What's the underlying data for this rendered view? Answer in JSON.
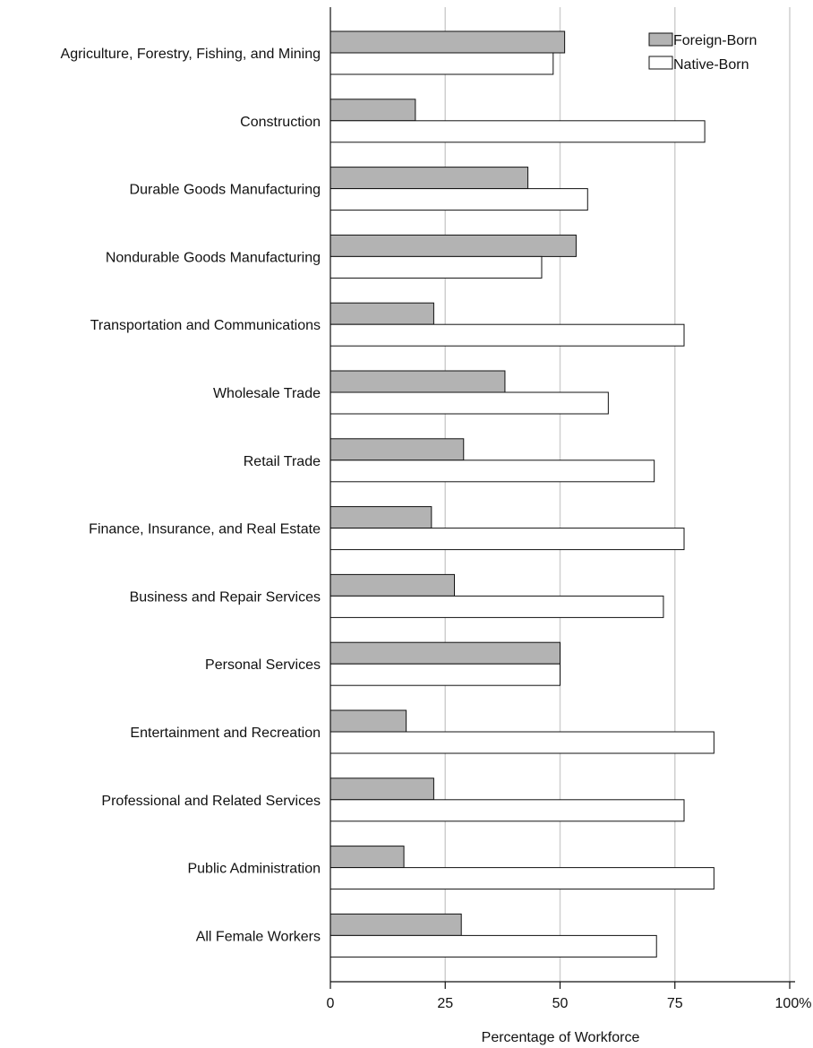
{
  "chart_data": {
    "type": "bar",
    "orientation": "horizontal",
    "categories": [
      "Agriculture, Forestry, Fishing, and Mining",
      "Construction",
      "Durable Goods Manufacturing",
      "Nondurable Goods Manufacturing",
      "Transportation and Communications",
      "Wholesale Trade",
      "Retail Trade",
      "Finance, Insurance, and Real Estate",
      "Business and Repair Services",
      "Personal Services",
      "Entertainment and Recreation",
      "Professional and Related Services",
      "Public Administration",
      "All Female Workers"
    ],
    "series": [
      {
        "name": "Foreign-Born",
        "color": "#b3b3b3",
        "values": [
          51,
          18.5,
          43,
          53.5,
          22.5,
          38,
          29,
          22,
          27,
          50,
          16.5,
          22.5,
          16,
          28.5
        ]
      },
      {
        "name": "Native-Born",
        "color": "#ffffff",
        "values": [
          48.5,
          81.5,
          56,
          46,
          77,
          60.5,
          70.5,
          77,
          72.5,
          50,
          83.5,
          77,
          83.5,
          71
        ]
      }
    ],
    "xlabel": "Percentage of Workforce",
    "ylabel": "",
    "xlim": [
      0,
      100
    ],
    "ticks": [
      "0",
      "25",
      "50",
      "75",
      "100%"
    ],
    "tick_values": [
      0,
      25,
      50,
      75,
      100
    ],
    "grid": true,
    "legend_position": "top-right"
  }
}
